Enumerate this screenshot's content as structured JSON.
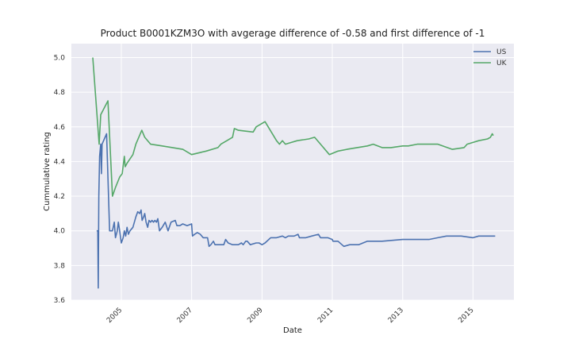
{
  "colors": {
    "plot_background": "#eaeaf2",
    "grid": "#ffffff",
    "us": "#4c72b0",
    "uk": "#55a868"
  },
  "chart_data": {
    "type": "line",
    "title": "Product B0001KZM3O with avgerage difference of -0.58 and first difference of -1",
    "xlabel": "Date",
    "ylabel": "Cummulative rating",
    "xlim": [
      "2003-08-01",
      "2016-03-01"
    ],
    "ylim": [
      3.6,
      5.08
    ],
    "x_ticks": [
      "2005-01-01",
      "2007-01-01",
      "2009-01-01",
      "2011-01-01",
      "2013-01-01",
      "2015-01-01"
    ],
    "x_tick_labels": [
      "2005",
      "2007",
      "2009",
      "2011",
      "2013",
      "2015"
    ],
    "y_ticks": [
      3.6,
      3.8,
      4.0,
      4.2,
      4.4,
      4.6,
      4.8,
      5.0
    ],
    "y_tick_labels": [
      "3.6",
      "3.8",
      "4.0",
      "4.2",
      "4.4",
      "4.6",
      "4.8",
      "5.0"
    ],
    "x_tick_rotation": 45,
    "grid": true,
    "legend_position": "top-right",
    "series": [
      {
        "name": "US",
        "color": "#4c72b0",
        "points": [
          [
            "2004-04-20",
            4.0
          ],
          [
            "2004-05-01",
            4.0
          ],
          [
            "2004-05-06",
            3.67
          ],
          [
            "2004-05-12",
            4.2
          ],
          [
            "2004-05-20",
            4.43
          ],
          [
            "2004-06-01",
            4.5
          ],
          [
            "2004-06-08",
            4.33
          ],
          [
            "2004-06-15",
            4.5
          ],
          [
            "2004-08-01",
            4.56
          ],
          [
            "2004-09-01",
            4.0
          ],
          [
            "2004-10-01",
            4.0
          ],
          [
            "2004-10-20",
            4.05
          ],
          [
            "2004-11-01",
            3.96
          ],
          [
            "2004-11-20",
            4.0
          ],
          [
            "2004-12-01",
            4.05
          ],
          [
            "2004-12-15",
            4.0
          ],
          [
            "2005-01-01",
            3.93
          ],
          [
            "2005-01-20",
            3.96
          ],
          [
            "2005-02-01",
            4.0
          ],
          [
            "2005-02-15",
            3.97
          ],
          [
            "2005-03-01",
            4.02
          ],
          [
            "2005-03-15",
            3.98
          ],
          [
            "2005-04-01",
            4.0
          ],
          [
            "2005-05-01",
            4.02
          ],
          [
            "2005-06-01",
            4.08
          ],
          [
            "2005-06-20",
            4.11
          ],
          [
            "2005-07-10",
            4.1
          ],
          [
            "2005-07-25",
            4.12
          ],
          [
            "2005-08-05",
            4.06
          ],
          [
            "2005-08-20",
            4.08
          ],
          [
            "2005-09-01",
            4.1
          ],
          [
            "2005-09-15",
            4.05
          ],
          [
            "2005-10-01",
            4.02
          ],
          [
            "2005-10-15",
            4.06
          ],
          [
            "2005-11-01",
            4.05
          ],
          [
            "2005-11-15",
            4.06
          ],
          [
            "2005-12-01",
            4.05
          ],
          [
            "2005-12-15",
            4.06
          ],
          [
            "2006-01-01",
            4.05
          ],
          [
            "2006-01-15",
            4.07
          ],
          [
            "2006-02-01",
            4.0
          ],
          [
            "2006-03-01",
            4.02
          ],
          [
            "2006-04-01",
            4.05
          ],
          [
            "2006-05-01",
            4.0
          ],
          [
            "2006-06-01",
            4.05
          ],
          [
            "2006-07-15",
            4.06
          ],
          [
            "2006-08-01",
            4.03
          ],
          [
            "2006-09-01",
            4.03
          ],
          [
            "2006-10-01",
            4.04
          ],
          [
            "2006-11-15",
            4.03
          ],
          [
            "2007-01-01",
            4.04
          ],
          [
            "2007-01-10",
            3.97
          ],
          [
            "2007-02-01",
            3.98
          ],
          [
            "2007-03-01",
            3.99
          ],
          [
            "2007-04-01",
            3.98
          ],
          [
            "2007-05-01",
            3.96
          ],
          [
            "2007-06-15",
            3.96
          ],
          [
            "2007-07-01",
            3.91
          ],
          [
            "2007-07-20",
            3.92
          ],
          [
            "2007-08-15",
            3.94
          ],
          [
            "2007-09-01",
            3.92
          ],
          [
            "2007-10-15",
            3.92
          ],
          [
            "2007-12-01",
            3.92
          ],
          [
            "2007-12-20",
            3.95
          ],
          [
            "2008-01-15",
            3.93
          ],
          [
            "2008-03-01",
            3.92
          ],
          [
            "2008-05-01",
            3.92
          ],
          [
            "2008-06-01",
            3.93
          ],
          [
            "2008-06-20",
            3.92
          ],
          [
            "2008-07-15",
            3.94
          ],
          [
            "2008-08-01",
            3.94
          ],
          [
            "2008-09-01",
            3.92
          ],
          [
            "2008-11-01",
            3.93
          ],
          [
            "2008-12-01",
            3.93
          ],
          [
            "2009-01-01",
            3.92
          ],
          [
            "2009-02-01",
            3.93
          ],
          [
            "2009-04-01",
            3.96
          ],
          [
            "2009-06-01",
            3.96
          ],
          [
            "2009-08-01",
            3.97
          ],
          [
            "2009-09-01",
            3.96
          ],
          [
            "2009-10-01",
            3.97
          ],
          [
            "2009-12-01",
            3.97
          ],
          [
            "2010-01-10",
            3.98
          ],
          [
            "2010-01-25",
            3.96
          ],
          [
            "2010-04-01",
            3.96
          ],
          [
            "2010-06-01",
            3.97
          ],
          [
            "2010-08-10",
            3.98
          ],
          [
            "2010-09-01",
            3.96
          ],
          [
            "2010-10-15",
            3.96
          ],
          [
            "2010-11-15",
            3.96
          ],
          [
            "2011-01-01",
            3.95
          ],
          [
            "2011-01-08",
            3.94
          ],
          [
            "2011-03-01",
            3.94
          ],
          [
            "2011-05-01",
            3.91
          ],
          [
            "2011-07-01",
            3.92
          ],
          [
            "2011-10-01",
            3.92
          ],
          [
            "2012-01-01",
            3.94
          ],
          [
            "2012-06-01",
            3.94
          ],
          [
            "2013-01-01",
            3.95
          ],
          [
            "2013-06-01",
            3.95
          ],
          [
            "2013-10-01",
            3.95
          ],
          [
            "2014-01-01",
            3.96
          ],
          [
            "2014-04-01",
            3.97
          ],
          [
            "2014-09-01",
            3.97
          ],
          [
            "2015-01-01",
            3.96
          ],
          [
            "2015-03-01",
            3.97
          ],
          [
            "2015-07-01",
            3.97
          ],
          [
            "2015-08-20",
            3.97
          ]
        ]
      },
      {
        "name": "UK",
        "color": "#55a868",
        "points": [
          [
            "2004-03-10",
            5.0
          ],
          [
            "2004-05-15",
            4.5
          ],
          [
            "2004-06-01",
            4.67
          ],
          [
            "2004-08-15",
            4.75
          ],
          [
            "2004-10-01",
            4.2
          ],
          [
            "2004-11-01",
            4.25
          ],
          [
            "2004-12-15",
            4.31
          ],
          [
            "2005-01-10",
            4.33
          ],
          [
            "2005-02-01",
            4.43
          ],
          [
            "2005-02-10",
            4.37
          ],
          [
            "2005-03-01",
            4.39
          ],
          [
            "2005-05-01",
            4.44
          ],
          [
            "2005-06-01",
            4.5
          ],
          [
            "2005-08-01",
            4.58
          ],
          [
            "2005-09-01",
            4.54
          ],
          [
            "2005-11-01",
            4.5
          ],
          [
            "2006-03-01",
            4.49
          ],
          [
            "2006-10-01",
            4.47
          ],
          [
            "2007-01-01",
            4.44
          ],
          [
            "2007-06-01",
            4.46
          ],
          [
            "2007-10-01",
            4.48
          ],
          [
            "2007-11-01",
            4.5
          ],
          [
            "2008-01-01",
            4.52
          ],
          [
            "2008-03-01",
            4.54
          ],
          [
            "2008-03-20",
            4.59
          ],
          [
            "2008-05-01",
            4.58
          ],
          [
            "2008-10-01",
            4.57
          ],
          [
            "2008-11-01",
            4.6
          ],
          [
            "2009-01-01",
            4.62
          ],
          [
            "2009-02-01",
            4.63
          ],
          [
            "2009-06-01",
            4.52
          ],
          [
            "2009-07-01",
            4.5
          ],
          [
            "2009-08-01",
            4.52
          ],
          [
            "2009-09-01",
            4.5
          ],
          [
            "2009-11-01",
            4.51
          ],
          [
            "2010-01-01",
            4.52
          ],
          [
            "2010-05-01",
            4.53
          ],
          [
            "2010-07-01",
            4.54
          ],
          [
            "2010-09-01",
            4.5
          ],
          [
            "2010-12-01",
            4.44
          ],
          [
            "2011-03-01",
            4.46
          ],
          [
            "2011-06-01",
            4.47
          ],
          [
            "2012-01-01",
            4.49
          ],
          [
            "2012-03-01",
            4.5
          ],
          [
            "2012-06-01",
            4.48
          ],
          [
            "2012-09-01",
            4.48
          ],
          [
            "2013-01-01",
            4.49
          ],
          [
            "2013-03-01",
            4.49
          ],
          [
            "2013-06-01",
            4.5
          ],
          [
            "2013-09-01",
            4.5
          ],
          [
            "2014-01-01",
            4.5
          ],
          [
            "2014-06-01",
            4.47
          ],
          [
            "2014-10-01",
            4.48
          ],
          [
            "2014-11-01",
            4.5
          ],
          [
            "2015-01-01",
            4.51
          ],
          [
            "2015-03-01",
            4.52
          ],
          [
            "2015-06-01",
            4.53
          ],
          [
            "2015-07-01",
            4.54
          ],
          [
            "2015-07-20",
            4.56
          ],
          [
            "2015-08-01",
            4.55
          ]
        ]
      }
    ]
  }
}
